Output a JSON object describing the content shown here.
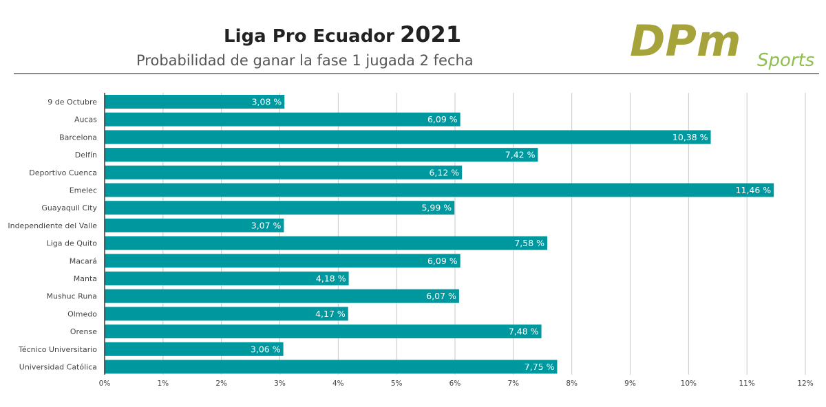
{
  "header": {
    "title": "Liga Pro Ecuador",
    "year": "2021",
    "subtitle": "Probabilidad de ganar la fase 1 jugada 2 fecha"
  },
  "logo": {
    "letters": "DPm",
    "word": "Sports",
    "olive": "#a6a33a",
    "gray": "#6f6f6f",
    "green": "#8fbf4f"
  },
  "colors": {
    "bar": "#00989f",
    "grid": "#c8c8c8",
    "axis": "#333333",
    "label": "#444444"
  },
  "chart_data": {
    "type": "bar",
    "orientation": "horizontal",
    "categories": [
      "9 de Octubre",
      "Aucas",
      "Barcelona",
      "Delfín",
      "Deportivo Cuenca",
      "Emelec",
      "Guayaquil City",
      "Independiente del Valle",
      "Liga de Quito",
      "Macará",
      "Manta",
      "Mushuc Runa",
      "Olmedo",
      "Orense",
      "Técnico Universitario",
      "Universidad Católica"
    ],
    "values": [
      3.08,
      6.09,
      10.38,
      7.42,
      6.12,
      11.46,
      5.99,
      3.07,
      7.58,
      6.09,
      4.18,
      6.07,
      4.17,
      7.48,
      3.06,
      7.75
    ],
    "value_labels": [
      "3,08 %",
      "6,09 %",
      "10,38 %",
      "7,42 %",
      "6,12 %",
      "11,46 %",
      "5,99 %",
      "3,07 %",
      "7,58 %",
      "6,09 %",
      "4,18 %",
      "6,07 %",
      "4,17 %",
      "7,48 %",
      "3,06 %",
      "7,75 %"
    ],
    "xlim": [
      0,
      12
    ],
    "x_ticks": [
      "0%",
      "1%",
      "2%",
      "3%",
      "4%",
      "5%",
      "6%",
      "7%",
      "8%",
      "9%",
      "10%",
      "11%",
      "12%"
    ],
    "grid": true,
    "legend": "none"
  }
}
